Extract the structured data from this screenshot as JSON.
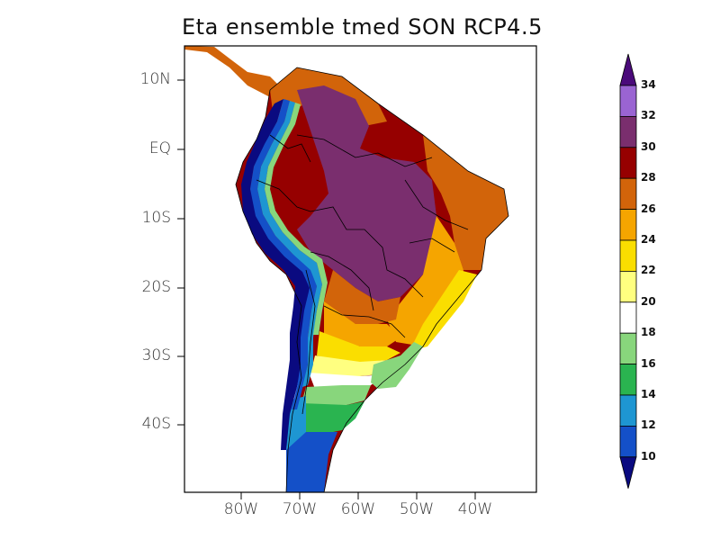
{
  "title": "Eta ensemble tmed SON RCP4.5",
  "lat_ticks": [
    "10N",
    "EQ",
    "10S",
    "20S",
    "30S",
    "40S"
  ],
  "lon_ticks": [
    "80W",
    "70W",
    "60W",
    "50W",
    "40W"
  ],
  "colorbar": {
    "labels": [
      "10",
      "12",
      "14",
      "16",
      "18",
      "20",
      "22",
      "24",
      "26",
      "28",
      "30",
      "32",
      "34"
    ],
    "colors": [
      "#0a0a80",
      "#1450c8",
      "#1e96d2",
      "#2ab450",
      "#88d67c",
      "#ffffff",
      "#ffff80",
      "#fade00",
      "#f5a500",
      "#d2640a",
      "#960000",
      "#7a2e6e",
      "#9a64d2",
      "#4a0a7a"
    ]
  }
}
